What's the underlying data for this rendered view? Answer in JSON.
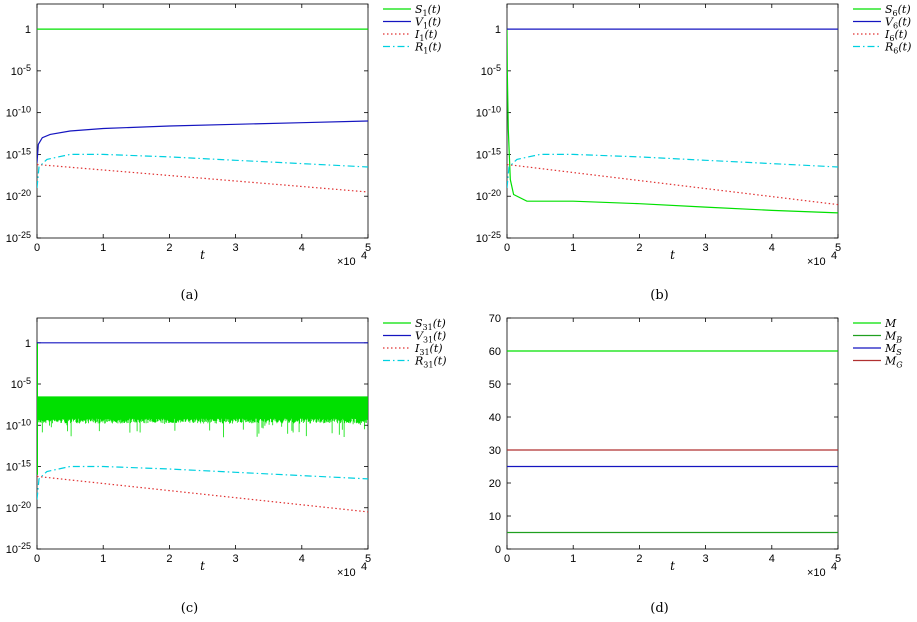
{
  "colors": {
    "green": "#00e000",
    "blue": "#1515c0",
    "red": "#e03030",
    "cyan": "#00d0e0",
    "dark_green": "#20a020",
    "dark_red": "#b03030"
  },
  "chart_data": [
    {
      "id": "a",
      "type": "line",
      "caption": "(a)",
      "yscale": "log",
      "xlabel": "t",
      "x_multiplier": "×10",
      "x_multiplier_exp": "4",
      "xlim": [
        0,
        5
      ],
      "xticks": [
        "0",
        "1",
        "2",
        "3",
        "4",
        "5"
      ],
      "ylim_exp": [
        -25,
        3
      ],
      "yticks": [
        {
          "exp": 0,
          "label": "1",
          "sup": ""
        },
        {
          "exp": -5,
          "label": "10",
          "sup": "-5"
        },
        {
          "exp": -10,
          "label": "10",
          "sup": "-10"
        },
        {
          "exp": -15,
          "label": "10",
          "sup": "-15"
        },
        {
          "exp": -20,
          "label": "10",
          "sup": "-20"
        },
        {
          "exp": -25,
          "label": "10",
          "sup": "-25"
        }
      ],
      "legend": [
        {
          "name": "S",
          "sub": "1",
          "arg": "(t)",
          "color": "#00e000",
          "dash": "solid"
        },
        {
          "name": "V",
          "sub": "1",
          "arg": "(t)",
          "color": "#1515c0",
          "dash": "solid"
        },
        {
          "name": "I",
          "sub": "1",
          "arg": "(t)",
          "color": "#e03030",
          "dash": "dotted"
        },
        {
          "name": "R",
          "sub": "1",
          "arg": "(t)",
          "color": "#00d0e0",
          "dash": "dashdot"
        }
      ],
      "series": [
        {
          "name": "S1(t)",
          "color": "#00e000",
          "dash": "solid",
          "x": [
            0,
            5
          ],
          "log10y": [
            0,
            0
          ]
        },
        {
          "name": "V1(t)",
          "color": "#1515c0",
          "dash": "solid",
          "x": [
            0,
            0.02,
            0.08,
            0.2,
            0.5,
            1,
            2,
            3,
            4,
            5
          ],
          "log10y": [
            -16,
            -13.8,
            -13,
            -12.6,
            -12.2,
            -11.9,
            -11.6,
            -11.4,
            -11.2,
            -11
          ]
        },
        {
          "name": "I1(t)",
          "color": "#e03030",
          "dash": "dotted",
          "x": [
            0,
            5
          ],
          "log10y": [
            -16.2,
            -19.5
          ]
        },
        {
          "name": "R1(t)",
          "color": "#00d0e0",
          "dash": "dashdot",
          "x": [
            0,
            0.03,
            0.15,
            0.5,
            1,
            2,
            3,
            4,
            5
          ],
          "log10y": [
            -19,
            -16.5,
            -15.6,
            -15,
            -15,
            -15.3,
            -15.7,
            -16.1,
            -16.5
          ]
        }
      ]
    },
    {
      "id": "b",
      "type": "line",
      "caption": "(b)",
      "yscale": "log",
      "xlabel": "t",
      "x_multiplier": "×10",
      "x_multiplier_exp": "4",
      "xlim": [
        0,
        5
      ],
      "xticks": [
        "0",
        "1",
        "2",
        "3",
        "4",
        "5"
      ],
      "ylim_exp": [
        -25,
        3
      ],
      "yticks": [
        {
          "exp": 0,
          "label": "1",
          "sup": ""
        },
        {
          "exp": -5,
          "label": "10",
          "sup": "-5"
        },
        {
          "exp": -10,
          "label": "10",
          "sup": "-10"
        },
        {
          "exp": -15,
          "label": "10",
          "sup": "-15"
        },
        {
          "exp": -20,
          "label": "10",
          "sup": "-20"
        },
        {
          "exp": -25,
          "label": "10",
          "sup": "-25"
        }
      ],
      "legend": [
        {
          "name": "S",
          "sub": "6",
          "arg": "(t)",
          "color": "#00e000",
          "dash": "solid"
        },
        {
          "name": "V",
          "sub": "6",
          "arg": "(t)",
          "color": "#1515c0",
          "dash": "solid"
        },
        {
          "name": "I",
          "sub": "6",
          "arg": "(t)",
          "color": "#e03030",
          "dash": "dotted"
        },
        {
          "name": "R",
          "sub": "6",
          "arg": "(t)",
          "color": "#00d0e0",
          "dash": "dashdot"
        }
      ],
      "series": [
        {
          "name": "S6(t)",
          "color": "#00e000",
          "dash": "solid",
          "x": [
            0,
            0.005,
            0.02,
            0.05,
            0.1,
            0.3,
            0.6,
            1,
            2,
            3,
            4,
            5
          ],
          "log10y": [
            0,
            -5,
            -12,
            -18,
            -19.8,
            -20.6,
            -20.6,
            -20.6,
            -20.9,
            -21.3,
            -21.7,
            -22
          ]
        },
        {
          "name": "V6(t)",
          "color": "#1515c0",
          "dash": "solid",
          "x": [
            0,
            5
          ],
          "log10y": [
            0,
            0
          ]
        },
        {
          "name": "I6(t)",
          "color": "#e03030",
          "dash": "dotted",
          "x": [
            0,
            5
          ],
          "log10y": [
            -16.2,
            -21
          ]
        },
        {
          "name": "R6(t)",
          "color": "#00d0e0",
          "dash": "dashdot",
          "x": [
            0,
            0.03,
            0.15,
            0.5,
            1,
            2,
            3,
            4,
            5
          ],
          "log10y": [
            -19,
            -16.5,
            -15.6,
            -15,
            -15,
            -15.3,
            -15.7,
            -16.1,
            -16.5
          ]
        }
      ]
    },
    {
      "id": "c",
      "type": "line",
      "caption": "(c)",
      "yscale": "log",
      "xlabel": "t",
      "x_multiplier": "×10",
      "x_multiplier_exp": "4",
      "xlim": [
        0,
        5
      ],
      "xticks": [
        "0",
        "1",
        "2",
        "3",
        "4",
        "5"
      ],
      "ylim_exp": [
        -25,
        3
      ],
      "yticks": [
        {
          "exp": 0,
          "label": "1",
          "sup": ""
        },
        {
          "exp": -5,
          "label": "10",
          "sup": "-5"
        },
        {
          "exp": -10,
          "label": "10",
          "sup": "-10"
        },
        {
          "exp": -15,
          "label": "10",
          "sup": "-15"
        },
        {
          "exp": -20,
          "label": "10",
          "sup": "-20"
        },
        {
          "exp": -25,
          "label": "10",
          "sup": "-25"
        }
      ],
      "legend": [
        {
          "name": "S",
          "sub": "31",
          "arg": "(t)",
          "color": "#00e000",
          "dash": "solid"
        },
        {
          "name": "V",
          "sub": "31",
          "arg": "(t)",
          "color": "#1515c0",
          "dash": "solid"
        },
        {
          "name": "I",
          "sub": "31",
          "arg": "(t)",
          "color": "#e03030",
          "dash": "dotted"
        },
        {
          "name": "R",
          "sub": "31",
          "arg": "(t)",
          "color": "#00d0e0",
          "dash": "dashdot"
        }
      ],
      "series": [
        {
          "name": "S31(t)",
          "color": "#00e000",
          "dash": "solid",
          "band": true,
          "x": [
            0,
            5
          ],
          "log10y_top": [
            -6.5,
            -6.5
          ],
          "log10y_bottom": [
            -9.5,
            -9.5
          ],
          "log10y_spike_min": -11.5
        },
        {
          "name": "V31(t)",
          "color": "#1515c0",
          "dash": "solid",
          "x": [
            0,
            5
          ],
          "log10y": [
            0,
            0
          ]
        },
        {
          "name": "I31(t)",
          "color": "#e03030",
          "dash": "dotted",
          "x": [
            0,
            5
          ],
          "log10y": [
            -16.2,
            -20.5
          ]
        },
        {
          "name": "R31(t)",
          "color": "#00d0e0",
          "dash": "dashdot",
          "x": [
            0,
            0.03,
            0.15,
            0.5,
            1,
            2,
            3,
            4,
            5
          ],
          "log10y": [
            -19,
            -16.5,
            -15.6,
            -15,
            -15,
            -15.3,
            -15.7,
            -16.1,
            -16.5
          ]
        }
      ]
    },
    {
      "id": "d",
      "type": "line",
      "caption": "(d)",
      "yscale": "linear",
      "xlabel": "t",
      "x_multiplier": "×10",
      "x_multiplier_exp": "4",
      "xlim": [
        0,
        5
      ],
      "xticks": [
        "0",
        "1",
        "2",
        "3",
        "4",
        "5"
      ],
      "ylim": [
        0,
        70
      ],
      "yticks_linear": [
        "0",
        "10",
        "20",
        "30",
        "40",
        "50",
        "60",
        "70"
      ],
      "legend": [
        {
          "name": "M",
          "sub": "",
          "arg": "",
          "color": "#00e000",
          "dash": "solid"
        },
        {
          "name": "M",
          "sub": "B",
          "arg": "",
          "color": "#20a020",
          "dash": "solid"
        },
        {
          "name": "M",
          "sub": "S",
          "arg": "",
          "color": "#1515c0",
          "dash": "solid"
        },
        {
          "name": "M",
          "sub": "G",
          "arg": "",
          "color": "#b03030",
          "dash": "solid"
        }
      ],
      "series": [
        {
          "name": "M",
          "color": "#00e000",
          "dash": "solid",
          "x": [
            0,
            5
          ],
          "y": [
            60,
            60
          ]
        },
        {
          "name": "MB",
          "color": "#20a020",
          "dash": "solid",
          "x": [
            0,
            5
          ],
          "y": [
            5,
            5
          ]
        },
        {
          "name": "MS",
          "color": "#1515c0",
          "dash": "solid",
          "x": [
            0,
            5
          ],
          "y": [
            25,
            25
          ]
        },
        {
          "name": "MG",
          "color": "#b03030",
          "dash": "solid",
          "x": [
            0,
            5
          ],
          "y": [
            30,
            30
          ]
        }
      ]
    }
  ]
}
